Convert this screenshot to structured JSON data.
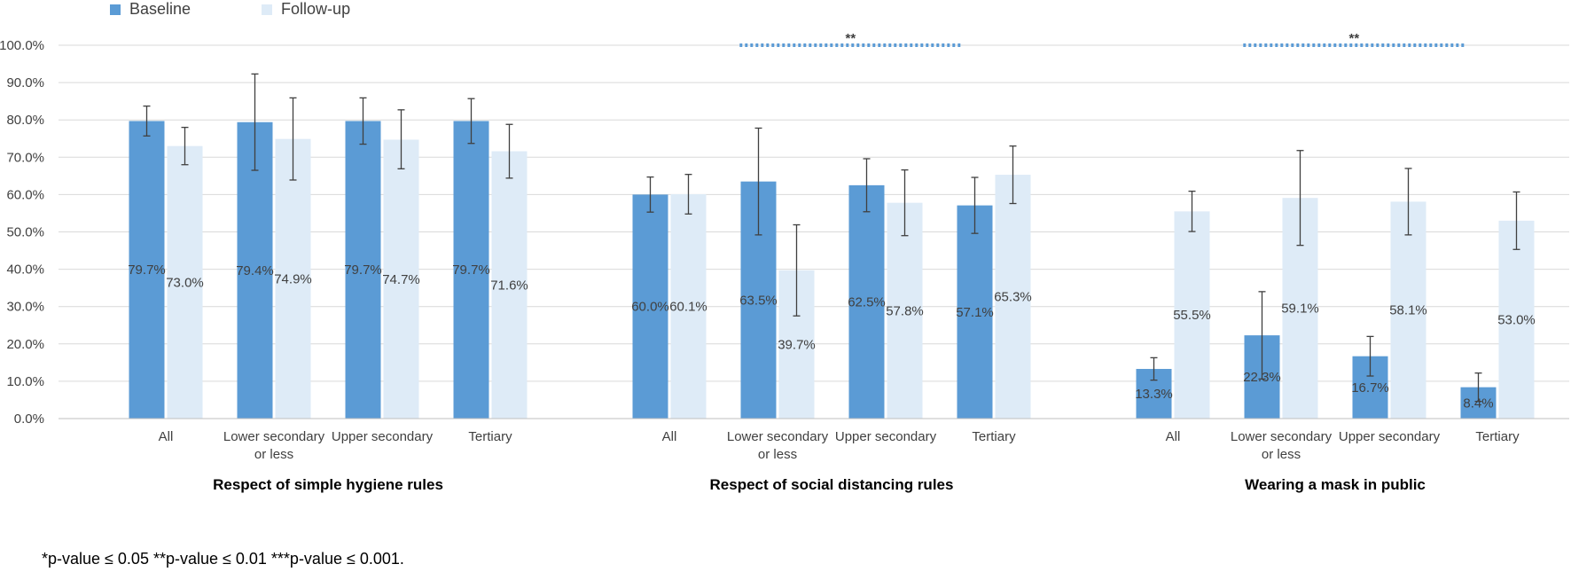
{
  "legend": {
    "baseline_label": "Baseline",
    "followup_label": "Follow-up"
  },
  "footnote": "*p-value ≤ 0.05 **p-value ≤ 0.01 ***p-value ≤ 0.001.",
  "colors": {
    "baseline": "#5b9bd5",
    "followup": "#deebf7",
    "grid": "#d9d9d9",
    "significance": "#5b9bd5",
    "errorbar": "#404040"
  },
  "chart_data": {
    "type": "bar",
    "y_tick_labels": [
      "0.0%",
      "10.0%",
      "20.0%",
      "30.0%",
      "40.0%",
      "50.0%",
      "60.0%",
      "70.0%",
      "80.0%",
      "90.0%",
      "100.0%"
    ],
    "ylim": [
      0,
      100
    ],
    "grid": true,
    "legend_position": "top-left",
    "groups": [
      {
        "title": "Respect of simple hygiene rules",
        "significance": "",
        "categories": [
          {
            "label": [
              "All"
            ],
            "baseline": 79.7,
            "baseline_label": "79.7%",
            "baseline_err": [
              75.7,
              83.7
            ],
            "followup": 73.0,
            "followup_label": "73.0%",
            "followup_err": [
              68.0,
              78.0
            ]
          },
          {
            "label": [
              "Lower secondary",
              "or less"
            ],
            "baseline": 79.4,
            "baseline_label": "79.4%",
            "baseline_err": [
              66.5,
              92.3
            ],
            "followup": 74.9,
            "followup_label": "74.9%",
            "followup_err": [
              63.9,
              85.9
            ]
          },
          {
            "label": [
              "Upper secondary"
            ],
            "baseline": 79.7,
            "baseline_label": "79.7%",
            "baseline_err": [
              73.5,
              85.9
            ],
            "followup": 74.7,
            "followup_label": "74.7%",
            "followup_err": [
              66.9,
              82.7
            ]
          },
          {
            "label": [
              "Tertiary"
            ],
            "baseline": 79.7,
            "baseline_label": "79.7%",
            "baseline_err": [
              73.7,
              85.7
            ],
            "followup": 71.6,
            "followup_label": "71.6%",
            "followup_err": [
              64.4,
              78.8
            ]
          }
        ]
      },
      {
        "title": "Respect of social distancing rules",
        "significance": "**",
        "categories": [
          {
            "label": [
              "All"
            ],
            "baseline": 60.0,
            "baseline_label": "60.0%",
            "baseline_err": [
              55.3,
              64.7
            ],
            "followup": 60.1,
            "followup_label": "60.1%",
            "followup_err": [
              54.8,
              65.4
            ]
          },
          {
            "label": [
              "Lower secondary",
              "or less"
            ],
            "baseline": 63.5,
            "baseline_label": "63.5%",
            "baseline_err": [
              49.2,
              77.8
            ],
            "followup": 39.7,
            "followup_label": "39.7%",
            "followup_err": [
              27.5,
              51.9
            ]
          },
          {
            "label": [
              "Upper secondary"
            ],
            "baseline": 62.5,
            "baseline_label": "62.5%",
            "baseline_err": [
              55.4,
              69.6
            ],
            "followup": 57.8,
            "followup_label": "57.8%",
            "followup_err": [
              49.0,
              66.6
            ]
          },
          {
            "label": [
              "Tertiary"
            ],
            "baseline": 57.1,
            "baseline_label": "57.1%",
            "baseline_err": [
              49.6,
              64.6
            ],
            "followup": 65.3,
            "followup_label": "65.3%",
            "followup_err": [
              57.6,
              73.0
            ]
          }
        ]
      },
      {
        "title": "Wearing a mask in public",
        "significance": "**",
        "categories": [
          {
            "label": [
              "All"
            ],
            "baseline": 13.3,
            "baseline_label": "13.3%",
            "baseline_err": [
              10.3,
              16.3
            ],
            "followup": 55.5,
            "followup_label": "55.5%",
            "followup_err": [
              50.1,
              60.9
            ]
          },
          {
            "label": [
              "Lower secondary",
              "or less"
            ],
            "baseline": 22.3,
            "baseline_label": "22.3%",
            "baseline_err": [
              10.6,
              34.0
            ],
            "followup": 59.1,
            "followup_label": "59.1%",
            "followup_err": [
              46.4,
              71.8
            ]
          },
          {
            "label": [
              "Upper secondary"
            ],
            "baseline": 16.7,
            "baseline_label": "16.7%",
            "baseline_err": [
              11.4,
              22.0
            ],
            "followup": 58.1,
            "followup_label": "58.1%",
            "followup_err": [
              49.2,
              67.0
            ]
          },
          {
            "label": [
              "Tertiary"
            ],
            "baseline": 8.4,
            "baseline_label": "8.4%",
            "baseline_err": [
              4.6,
              12.2
            ],
            "followup": 53.0,
            "followup_label": "53.0%",
            "followup_err": [
              45.3,
              60.7
            ]
          }
        ]
      }
    ]
  }
}
